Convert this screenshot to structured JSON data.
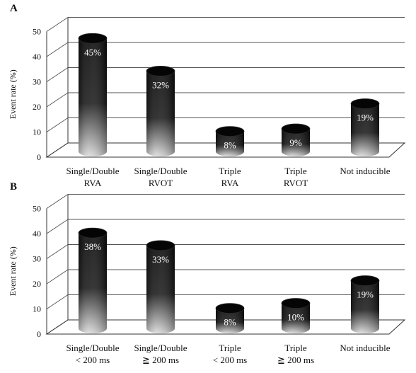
{
  "chart_data": [
    {
      "panel_label": "A",
      "type": "bar",
      "ylabel": "Event rate (%)",
      "ylim": [
        0,
        50
      ],
      "yticks": [
        "0",
        "10",
        "20",
        "30",
        "40",
        "50"
      ],
      "grid": true,
      "categories": [
        [
          "Single/Double",
          "RVA"
        ],
        [
          "Single/Double",
          "RVOT"
        ],
        [
          "Triple",
          "RVA"
        ],
        [
          "Triple",
          "RVOT"
        ],
        [
          "Not inducible",
          ""
        ]
      ],
      "values": [
        45,
        32,
        8,
        9,
        19
      ],
      "value_labels": [
        "45%",
        "32%",
        "8%",
        "9%",
        "19%"
      ]
    },
    {
      "panel_label": "B",
      "type": "bar",
      "ylabel": "Event rate (%)",
      "ylim": [
        0,
        50
      ],
      "yticks": [
        "0",
        "10",
        "20",
        "30",
        "40",
        "50"
      ],
      "grid": true,
      "categories": [
        [
          "Single/Double",
          "< 200 ms"
        ],
        [
          "Single/Double",
          "≧ 200 ms"
        ],
        [
          "Triple",
          "< 200 ms"
        ],
        [
          "Triple",
          "≧ 200 ms"
        ],
        [
          "Not inducible",
          ""
        ]
      ],
      "values": [
        38,
        33,
        8,
        10,
        19
      ],
      "value_labels": [
        "38%",
        "33%",
        "8%",
        "10%",
        "19%"
      ]
    }
  ],
  "colors": {
    "bar_top": "#0a0a0a",
    "bar_bottom": "#d8d8d8",
    "grid": "#555555",
    "label": "#ffffff"
  }
}
